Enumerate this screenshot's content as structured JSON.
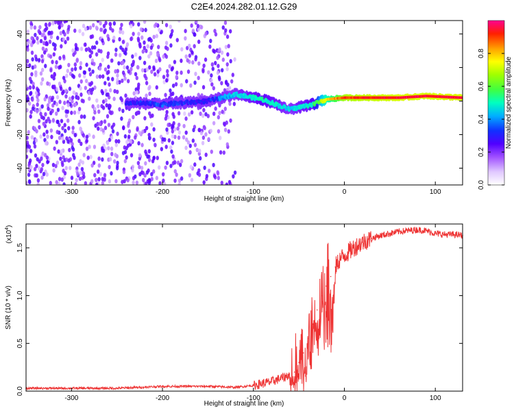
{
  "figure_title": "C2E4.2024.282.01.12.G29",
  "chart_data": [
    {
      "type": "heatmap",
      "title": "",
      "xlabel": "Height of straight line (km)",
      "ylabel": "Frequency (Hz)",
      "xlim": [
        -350,
        130
      ],
      "ylim": [
        -50,
        48
      ],
      "xticks": [
        -300,
        -200,
        -100,
        0,
        100
      ],
      "xtick_labels": [
        "-300",
        "-200",
        "-100",
        "0",
        "100"
      ],
      "yticks": [
        -40,
        -20,
        0,
        20,
        40
      ],
      "ytick_labels": [
        "-40",
        "-20",
        "0",
        "20",
        "40"
      ],
      "colorbar": {
        "label": "Normalized spectral amplitude",
        "range": [
          0,
          1
        ],
        "ticks": [
          0.0,
          0.2,
          0.4,
          0.6,
          0.8
        ],
        "tick_labels": [
          "0.0",
          "0.2",
          "0.4",
          "0.6",
          "0.8"
        ],
        "colors": [
          "#ffffff",
          "#e0c8ff",
          "#a050ff",
          "#6000ff",
          "#2020ff",
          "#00c0ff",
          "#00ffc0",
          "#40ff40",
          "#c0ff00",
          "#ffff00",
          "#ffa000",
          "#ff2000",
          "#ff0080"
        ]
      },
      "features": [
        {
          "name": "noise region",
          "x_range": [
            -350,
            -120
          ],
          "freq_range": [
            -50,
            48
          ],
          "amplitude": 0.1
        },
        {
          "name": "signal track",
          "points": [
            {
              "x": -240,
              "freq": -1,
              "amplitude": 0.3
            },
            {
              "x": -200,
              "freq": -2,
              "amplitude": 0.35
            },
            {
              "x": -150,
              "freq": 0,
              "amplitude": 0.3
            },
            {
              "x": -120,
              "freq": 4,
              "amplitude": 0.45
            },
            {
              "x": -90,
              "freq": 1,
              "amplitude": 0.5
            },
            {
              "x": -60,
              "freq": -5,
              "amplitude": 0.45
            },
            {
              "x": -35,
              "freq": -2,
              "amplitude": 0.5
            },
            {
              "x": -20,
              "freq": 1,
              "amplitude": 0.75
            },
            {
              "x": 0,
              "freq": 2,
              "amplitude": 0.9
            },
            {
              "x": 60,
              "freq": 2,
              "amplitude": 0.95
            },
            {
              "x": 90,
              "freq": 3,
              "amplitude": 0.95
            },
            {
              "x": 130,
              "freq": 2,
              "amplitude": 0.95
            }
          ]
        }
      ]
    },
    {
      "type": "line",
      "title": "",
      "xlabel": "Height of straight line (km)",
      "ylabel": "SNR (10 * v/v)",
      "y_multiplier_label": "(x10",
      "y_multiplier_exp": "4",
      "y_multiplier_close": ")",
      "xlim": [
        -350,
        130
      ],
      "ylim": [
        0,
        1.75
      ],
      "xticks": [
        -300,
        -200,
        -100,
        0,
        100
      ],
      "xtick_labels": [
        "-300",
        "-200",
        "-100",
        "0",
        "100"
      ],
      "yticks": [
        0.0,
        0.5,
        1.0,
        1.5
      ],
      "ytick_labels": [
        "0.0",
        "0.5",
        "1.0",
        "1.5"
      ],
      "series": [
        {
          "name": "SNR",
          "color": "#ee3333",
          "x": [
            -350,
            -300,
            -250,
            -200,
            -150,
            -120,
            -100,
            -80,
            -65,
            -55,
            -50,
            -45,
            -40,
            -35,
            -30,
            -25,
            -20,
            -15,
            -10,
            -5,
            0,
            10,
            20,
            30,
            40,
            50,
            60,
            70,
            80,
            90,
            100,
            110,
            120,
            130
          ],
          "y": [
            0.03,
            0.03,
            0.03,
            0.05,
            0.05,
            0.04,
            0.06,
            0.1,
            0.15,
            0.2,
            0.3,
            0.4,
            0.55,
            0.7,
            0.85,
            1.0,
            1.1,
            1.2,
            1.3,
            1.38,
            1.42,
            1.5,
            1.56,
            1.6,
            1.63,
            1.65,
            1.67,
            1.68,
            1.69,
            1.68,
            1.65,
            1.64,
            1.64,
            1.63
          ]
        }
      ]
    }
  ]
}
